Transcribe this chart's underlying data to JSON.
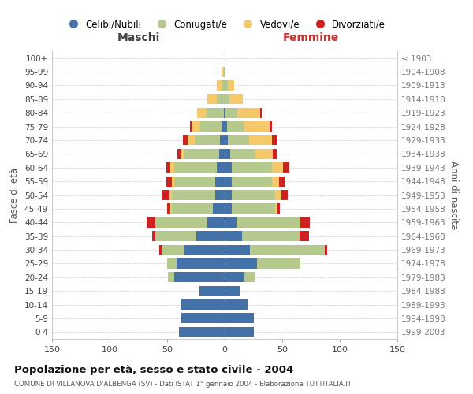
{
  "age_groups": [
    "0-4",
    "5-9",
    "10-14",
    "15-19",
    "20-24",
    "25-29",
    "30-34",
    "35-39",
    "40-44",
    "45-49",
    "50-54",
    "55-59",
    "60-64",
    "65-69",
    "70-74",
    "75-79",
    "80-84",
    "85-89",
    "90-94",
    "95-99",
    "100+"
  ],
  "birth_years": [
    "1999-2003",
    "1994-1998",
    "1989-1993",
    "1984-1988",
    "1979-1983",
    "1974-1978",
    "1969-1973",
    "1964-1968",
    "1959-1963",
    "1954-1958",
    "1949-1953",
    "1944-1948",
    "1939-1943",
    "1934-1938",
    "1929-1933",
    "1924-1928",
    "1919-1923",
    "1914-1918",
    "1909-1913",
    "1904-1908",
    "≤ 1903"
  ],
  "colors": {
    "celibi": "#4472a8",
    "coniugati": "#b5c98e",
    "vedovi": "#f5c96a",
    "divorziati": "#cc2222"
  },
  "maschi": {
    "celibi": [
      40,
      38,
      38,
      22,
      44,
      42,
      35,
      25,
      15,
      10,
      8,
      8,
      7,
      5,
      4,
      3,
      1,
      0,
      0,
      0,
      0
    ],
    "coniugati": [
      0,
      0,
      0,
      0,
      5,
      8,
      20,
      35,
      45,
      36,
      38,
      36,
      37,
      30,
      22,
      18,
      15,
      7,
      3,
      1,
      0
    ],
    "vedovi": [
      0,
      0,
      0,
      0,
      0,
      0,
      0,
      0,
      0,
      1,
      2,
      2,
      3,
      3,
      6,
      8,
      8,
      8,
      4,
      1,
      0
    ],
    "divorziati": [
      0,
      0,
      0,
      0,
      0,
      0,
      2,
      3,
      8,
      3,
      6,
      5,
      4,
      3,
      4,
      1,
      0,
      0,
      0,
      0,
      0
    ]
  },
  "femmine": {
    "nubili": [
      25,
      25,
      20,
      13,
      17,
      28,
      22,
      15,
      10,
      6,
      6,
      6,
      6,
      5,
      3,
      2,
      1,
      0,
      1,
      0,
      0
    ],
    "coniugate": [
      0,
      0,
      0,
      0,
      10,
      38,
      65,
      50,
      55,
      38,
      38,
      35,
      35,
      22,
      18,
      15,
      10,
      4,
      2,
      0,
      0
    ],
    "vedove": [
      0,
      0,
      0,
      0,
      0,
      0,
      0,
      0,
      1,
      2,
      5,
      6,
      10,
      15,
      20,
      22,
      20,
      12,
      5,
      1,
      0
    ],
    "divorziate": [
      0,
      0,
      0,
      0,
      0,
      0,
      2,
      8,
      8,
      2,
      6,
      5,
      5,
      3,
      4,
      2,
      1,
      0,
      0,
      0,
      0
    ]
  },
  "title": "Popolazione per età, sesso e stato civile - 2004",
  "subtitle": "COMUNE DI VILLANOVA D'ALBENGA (SV) - Dati ISTAT 1° gennaio 2004 - Elaborazione TUTTITALIA.IT",
  "xlabel_left": "Maschi",
  "xlabel_right": "Femmine",
  "ylabel_left": "Fasce di età",
  "ylabel_right": "Anni di nascita",
  "xlim": 150,
  "legend_labels": [
    "Celibi/Nubili",
    "Coniugati/e",
    "Vedovi/e",
    "Divorziati/e"
  ]
}
